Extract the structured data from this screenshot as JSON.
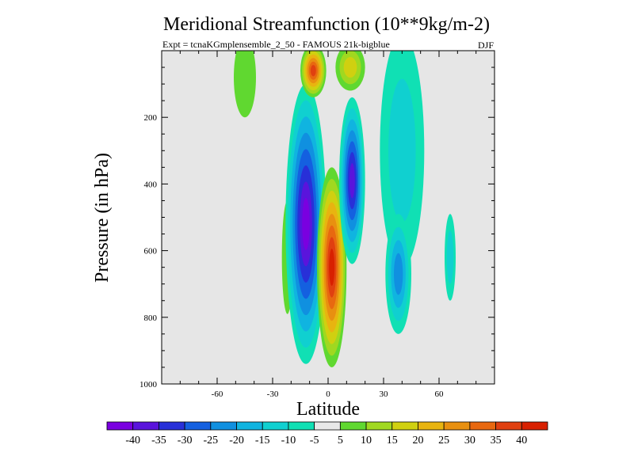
{
  "chart_data": {
    "type": "contour",
    "title": "Meridional Streamfunction (10**9kg/m-2)",
    "subtitle_left": "Expt = tcnaKGmplensemble_2_50 - FAMOUS 21k-bigblue",
    "subtitle_right": "DJF",
    "xlabel": "Latitude",
    "ylabel": "Pressure (in hPa)",
    "xlim": [
      -90,
      90
    ],
    "ylim": [
      1000,
      0
    ],
    "x_ticks": [
      -60,
      -30,
      0,
      30,
      60
    ],
    "x_tick_labels": [
      "-60",
      "-30",
      "0",
      "30",
      "60"
    ],
    "y_ticks": [
      200,
      400,
      600,
      800,
      1000
    ],
    "y_tick_labels": [
      "200",
      "400",
      "600",
      "800",
      "1000"
    ],
    "background_color": "#e6e6e6",
    "colorbar": {
      "boundaries": [
        -45,
        -40,
        -35,
        -30,
        -25,
        -20,
        -15,
        -10,
        -5,
        5,
        10,
        15,
        20,
        25,
        30,
        35,
        40,
        45
      ],
      "labels": [
        "-40",
        "-35",
        "-30",
        "-25",
        "-20",
        "-15",
        "-10",
        "-5",
        "5",
        "10",
        "15",
        "20",
        "25",
        "30",
        "35",
        "40"
      ],
      "colors": [
        "#7a00e0",
        "#5a14dc",
        "#2830d8",
        "#1460e0",
        "#1090e0",
        "#10b4e0",
        "#10d0d0",
        "#10e0b4",
        "#e8e8e8",
        "#60d830",
        "#a0d820",
        "#d0d010",
        "#e8b410",
        "#e89010",
        "#e86810",
        "#e04010",
        "#d82000"
      ]
    },
    "cells": [
      {
        "name": "cell-nh-upper-positive",
        "lat": -45,
        "p": 80,
        "dlat": 6,
        "dp": 120,
        "value": 5
      },
      {
        "name": "cell-sh-left-positive",
        "lat": -22,
        "p": 620,
        "dlat": 3,
        "dp": 170,
        "value": 5
      },
      {
        "name": "cell-sh-main-negative",
        "lat": -12,
        "p": 520,
        "dlat": 11,
        "dp": 420,
        "value": -40
      },
      {
        "name": "cell-equatorial-positive",
        "lat": 2,
        "p": 650,
        "dlat": 8,
        "dp": 300,
        "value": 40
      },
      {
        "name": "cell-upper-left-positive",
        "lat": -8,
        "p": 60,
        "dlat": 7,
        "dp": 80,
        "value": 35
      },
      {
        "name": "cell-upper-right-positive",
        "lat": 12,
        "p": 50,
        "dlat": 8,
        "dp": 70,
        "value": 15
      },
      {
        "name": "cell-nh-negative",
        "lat": 13,
        "p": 390,
        "dlat": 7,
        "dp": 250,
        "value": -35
      },
      {
        "name": "cell-nh-outer-negative",
        "lat": 40,
        "p": 300,
        "dlat": 12,
        "dp": 350,
        "value": -10
      },
      {
        "name": "cell-nh-lower-negative",
        "lat": 38,
        "p": 670,
        "dlat": 7,
        "dp": 180,
        "value": -20
      },
      {
        "name": "cell-nh-far-negative",
        "lat": 66,
        "p": 620,
        "dlat": 3,
        "dp": 130,
        "value": -10
      }
    ]
  }
}
